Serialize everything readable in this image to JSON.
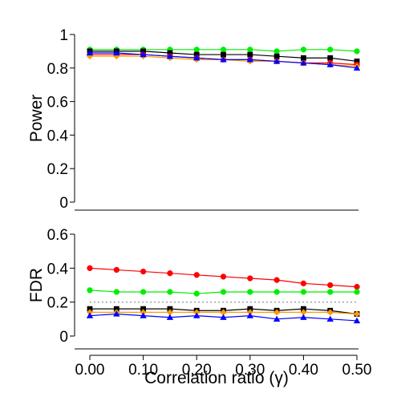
{
  "chart_data": {
    "type": "line",
    "xlabel": "Correlation ratio (γ)",
    "x": [
      0.0,
      0.05,
      0.1,
      0.15,
      0.2,
      0.25,
      0.3,
      0.35,
      0.4,
      0.45,
      0.5
    ],
    "x_tick_labels": [
      "0.00",
      "0.10",
      "0.20",
      "0.30",
      "0.40",
      "0.50"
    ],
    "x_ticks": [
      0.0,
      0.1,
      0.2,
      0.3,
      0.4,
      0.5
    ],
    "xlim": [
      0.0,
      0.5
    ],
    "panels": [
      {
        "ylabel": "Power",
        "ylim": [
          0,
          1
        ],
        "y_ticks": [
          0,
          0.2,
          0.4,
          0.6,
          0.8,
          1
        ],
        "y_tick_labels": [
          "0",
          "0.2",
          "0.4",
          "0.6",
          "0.8",
          "1"
        ],
        "reference_line": null,
        "series": [
          {
            "color": "#00ee00",
            "marker": "circle",
            "values": [
              0.91,
              0.91,
              0.91,
              0.91,
              0.91,
              0.91,
              0.91,
              0.9,
              0.91,
              0.91,
              0.9
            ]
          },
          {
            "color": "#000000",
            "marker": "square",
            "values": [
              0.9,
              0.9,
              0.9,
              0.89,
              0.88,
              0.88,
              0.88,
              0.87,
              0.86,
              0.86,
              0.84
            ]
          },
          {
            "color": "#ff0000",
            "marker": "circle",
            "values": [
              0.88,
              0.88,
              0.88,
              0.87,
              0.86,
              0.85,
              0.85,
              0.84,
              0.83,
              0.83,
              0.82
            ]
          },
          {
            "color": "#ff9900",
            "marker": "diamond",
            "values": [
              0.87,
              0.87,
              0.87,
              0.86,
              0.85,
              0.85,
              0.84,
              0.84,
              0.83,
              0.82,
              0.81
            ]
          },
          {
            "color": "#0000ff",
            "marker": "triangle",
            "values": [
              0.89,
              0.89,
              0.88,
              0.87,
              0.86,
              0.85,
              0.85,
              0.84,
              0.83,
              0.82,
              0.8
            ]
          }
        ]
      },
      {
        "ylabel": "FDR",
        "ylim": [
          0,
          0.6
        ],
        "y_ticks": [
          0,
          0.2,
          0.4,
          0.6
        ],
        "y_tick_labels": [
          "0",
          "0.2",
          "0.4",
          "0.6"
        ],
        "reference_line": 0.2,
        "series": [
          {
            "color": "#ff0000",
            "marker": "circle",
            "values": [
              0.4,
              0.39,
              0.38,
              0.37,
              0.36,
              0.35,
              0.34,
              0.33,
              0.31,
              0.3,
              0.29
            ]
          },
          {
            "color": "#00ee00",
            "marker": "circle",
            "values": [
              0.27,
              0.26,
              0.26,
              0.26,
              0.25,
              0.26,
              0.26,
              0.26,
              0.26,
              0.26,
              0.26
            ]
          },
          {
            "color": "#000000",
            "marker": "square",
            "values": [
              0.16,
              0.16,
              0.16,
              0.16,
              0.15,
              0.15,
              0.16,
              0.15,
              0.16,
              0.15,
              0.13
            ]
          },
          {
            "color": "#ff9900",
            "marker": "diamond",
            "values": [
              0.14,
              0.14,
              0.14,
              0.14,
              0.14,
              0.14,
              0.14,
              0.14,
              0.14,
              0.14,
              0.13
            ]
          },
          {
            "color": "#0000ff",
            "marker": "triangle",
            "values": [
              0.12,
              0.13,
              0.12,
              0.11,
              0.12,
              0.11,
              0.12,
              0.1,
              0.11,
              0.1,
              0.09
            ]
          }
        ]
      }
    ]
  }
}
